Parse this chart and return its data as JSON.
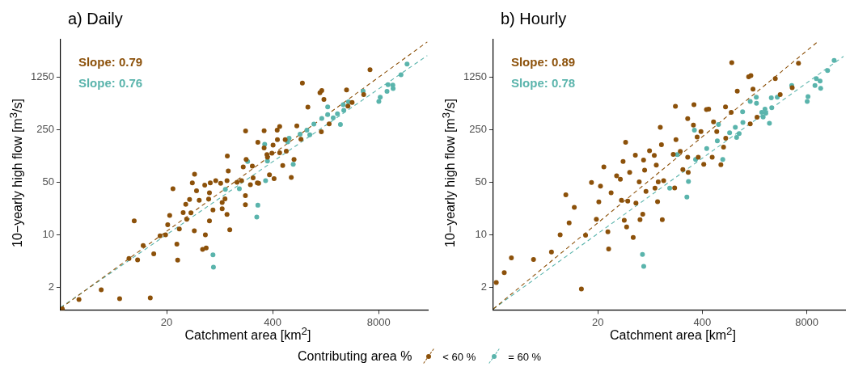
{
  "chart_data": [
    {
      "type": "scatter",
      "title": "a) Daily",
      "xlabel": "Catchment area [km$^{2}$]",
      "ylabel": "10−yearly high flow [m$^{3}$/s]",
      "log": "xy",
      "xlim": [
        1,
        32000
      ],
      "ylim": [
        1,
        4000
      ],
      "xticks": [
        20,
        400,
        8000
      ],
      "yticks": [
        2,
        10,
        50,
        250,
        1250
      ],
      "grid": false,
      "legend": "bottom",
      "legend_title": "Contributing area %",
      "marker": "circle",
      "annotations": [
        "Slope: 0.79",
        "Slope: 0.76"
      ],
      "series": [
        {
          "name": "< 60 %",
          "color": "#8c510a",
          "x": [
            1.05,
            1.68,
            3.15,
            5.3,
            12.6,
            8,
            6.9,
            8.8,
            10.3,
            13.9,
            16.6,
            19.4,
            20.6,
            21.8,
            23.9,
            26.7,
            27.3,
            28.6,
            31.9,
            34.3,
            38.2,
            39.7,
            41.3,
            44,
            43.7,
            46.5,
            50.2,
            58.7,
            59.7,
            55.2,
            61.1,
            67,
            68.6,
            67,
            74,
            80,
            92,
            96,
            104,
            111,
            114,
            110,
            119,
            110,
            146,
            166,
            174,
            186,
            189,
            185,
            185,
            213,
            225,
            263,
            269,
            314,
            314,
            340,
            365,
            391,
            404,
            416,
            454,
            487,
            457,
            487,
            531,
            569,
            587,
            676,
            731,
            791,
            925,
            889,
            1080,
            1520,
            1600,
            1700,
            1580,
            1970,
            3220,
            3350,
            3770,
            5230,
            6250,
            345,
            96,
            35.3,
            65.5,
            230,
            259
          ],
          "values": [
            1.03,
            1.38,
            1.85,
            1.41,
            1.45,
            15.3,
            4.85,
            4.65,
            7.2,
            5.6,
            9.7,
            10,
            13.6,
            18.1,
            41,
            7.5,
            4.6,
            12,
            19.8,
            25.5,
            29.6,
            19.6,
            49.3,
            64,
            11.3,
            38.7,
            28.9,
            45.8,
            10,
            6.4,
            6.7,
            15.3,
            49.3,
            36.2,
            21.5,
            52.7,
            48.5,
            27,
            30.1,
            112,
            71,
            52.7,
            11.7,
            18.7,
            50.2,
            52.7,
            80,
            242,
            101,
            33.3,
            25.2,
            46.6,
            82,
            171,
            48.5,
            244,
            144,
            117,
            63,
            122,
            157,
            56,
            248,
            277,
            185,
            124,
            84,
            185,
            130,
            58,
            101,
            282,
            1050,
            188,
            502,
            782,
            835,
            634,
            236,
            301,
            851,
            519,
            578,
            738,
            1580,
            108,
            22.3,
            16.1,
            29.9,
            57.4,
            49.3
          ]
        },
        {
          "name": "= 60 %",
          "color": "#5ab4ac",
          "x": [
            74,
            75,
            255,
            263,
            105,
            156,
            197,
            269,
            327,
            345,
            319,
            714,
            636,
            867,
            1050,
            1140,
            1280,
            1600,
            1890,
            1890,
            2210,
            2490,
            2710,
            2930,
            2980,
            3400,
            5140,
            8020,
            8340,
            10100,
            10400,
            11900,
            12000,
            15000,
            17800,
            611
          ],
          "values": [
            5.4,
            3.7,
            17.3,
            24.8,
            40.4,
            41,
            95,
            null,
            52.7,
            96,
            161,
            87,
            193,
            219,
            248,
            215,
            298,
            356,
            506,
            400,
            362,
            410,
            294,
            541,
            454,
            589,
            822,
            598,
            679,
            817,
            1000,
            988,
            887,
            1350,
            1880,
            173
          ]
        },
        {
          "type": "line",
          "color": "#8c510a",
          "x": [
            1,
            31500
          ],
          "values": [
            1.05,
            3710
          ],
          "line_style": "dashed",
          "marker": "none"
        },
        {
          "type": "line",
          "color": "#5ab4ac",
          "x": [
            1,
            31500
          ],
          "values": [
            1.08,
            2440
          ],
          "line_style": "dashed",
          "marker": "none"
        }
      ]
    },
    {
      "type": "scatter",
      "title": "b) Hourly",
      "xlabel": "Catchment area [km$^{2}$]",
      "ylabel": "10−yearly high flow [m$^{3}$/s]",
      "log": "xy",
      "xlim": [
        1,
        24000
      ],
      "ylim": [
        1,
        4000
      ],
      "xticks": [
        20,
        400,
        8000
      ],
      "yticks": [
        2,
        10,
        50,
        250,
        1250
      ],
      "grid": false,
      "marker": "circle",
      "annotations": [
        "Slope: 0.89",
        "Slope: 0.78"
      ],
      "series": [
        {
          "color": "#8c510a",
          "x": [
            1.09,
            1.37,
            1.68,
            3.17,
            5.3,
            6.8,
            8,
            8.8,
            10.2,
            12.5,
            14.1,
            16.7,
            19.2,
            20.6,
            21.6,
            23.8,
            26.7,
            27.3,
            29.3,
            34.3,
            38.2,
            39.4,
            41.3,
            44.4,
            42.7,
            45.7,
            47.2,
            49.9,
            55.2,
            58.7,
            59.7,
            65.6,
            67.1,
            72.6,
            74.3,
            76.6,
            79.6,
            88.1,
            101,
            107,
            111,
            120,
            124,
            127,
            132,
            113,
            174,
            185,
            188,
            181,
            213,
            229,
            263,
            263,
            315,
            310,
            345,
            356,
            385,
            417,
            451,
            480,
            552,
            531,
            605,
            681,
            736,
            778,
            783,
            916,
            931,
            1090,
            1510,
            1610,
            1710,
            1580,
            1920,
            3240,
            3730,
            5260,
            6300,
            103,
            267
          ],
          "values": [
            2.32,
            3.14,
            4.93,
            4.69,
            5.9,
            10,
            34.1,
            14.4,
            23.2,
            1.9,
            9.9,
            49.8,
            16.1,
            27.4,
            44.6,
            80,
            11,
            6.5,
            36.2,
            61,
            55,
            28.9,
            95,
            171,
            15.6,
            12.7,
            28.2,
            68,
            9.2,
            115,
            26.5,
            50.6,
            15.9,
            18.8,
            99,
            72.6,
            37.8,
            132,
            114,
            85,
            27.7,
            270,
            159,
            15.9,
            52.7,
            50.6,
            118,
            514,
            185,
            42.1,
            129,
            74,
            108,
            353,
            541,
            289,
            201,
            108,
            238,
            87,
            466,
            473,
            319,
            108,
            238,
            86,
            147,
            506,
            193,
            428,
            1960,
            822,
            1270,
            1320,
            873,
            301,
            368,
            1200,
            738,
            910,
            1930,
            41.8,
            68
          ]
        },
        {
          "color": "#5ab4ac",
          "x": [
            72,
            74.6,
            257,
            269,
            157,
            195,
            330,
            319,
            454,
            636,
            615,
            719,
            875,
            1030,
            1070,
            1150,
            1270,
            1280,
            1580,
            1880,
            1890,
            2200,
            2290,
            2410,
            2470,
            2740,
            2930,
            2890,
            3430,
            5190,
            8090,
            8280,
            10100,
            10500,
            11900,
            11700,
            14500,
            17500
          ],
          "values": [
            5.5,
            3.8,
            31.9,
            51.5,
            41.8,
            117,
            101,
            248,
            141,
            294,
            178,
            101,
            229,
            270,
            198,
            223,
            435,
            314,
            598,
            679,
            565,
            428,
            371,
            473,
            418,
            306,
            493,
            667,
            679,
            973,
            598,
            695,
            973,
            1200,
            893,
            1120,
            1540,
            2100
          ]
        },
        {
          "type": "line",
          "color": "#8c510a",
          "x": [
            1,
            11300
          ],
          "values": [
            1.03,
            3840
          ],
          "line_style": "dashed",
          "marker": "none"
        },
        {
          "type": "line",
          "color": "#5ab4ac",
          "x": [
            1,
            22900
          ],
          "values": [
            1.03,
            2380
          ],
          "line_style": "dashed",
          "marker": "none"
        }
      ]
    }
  ]
}
